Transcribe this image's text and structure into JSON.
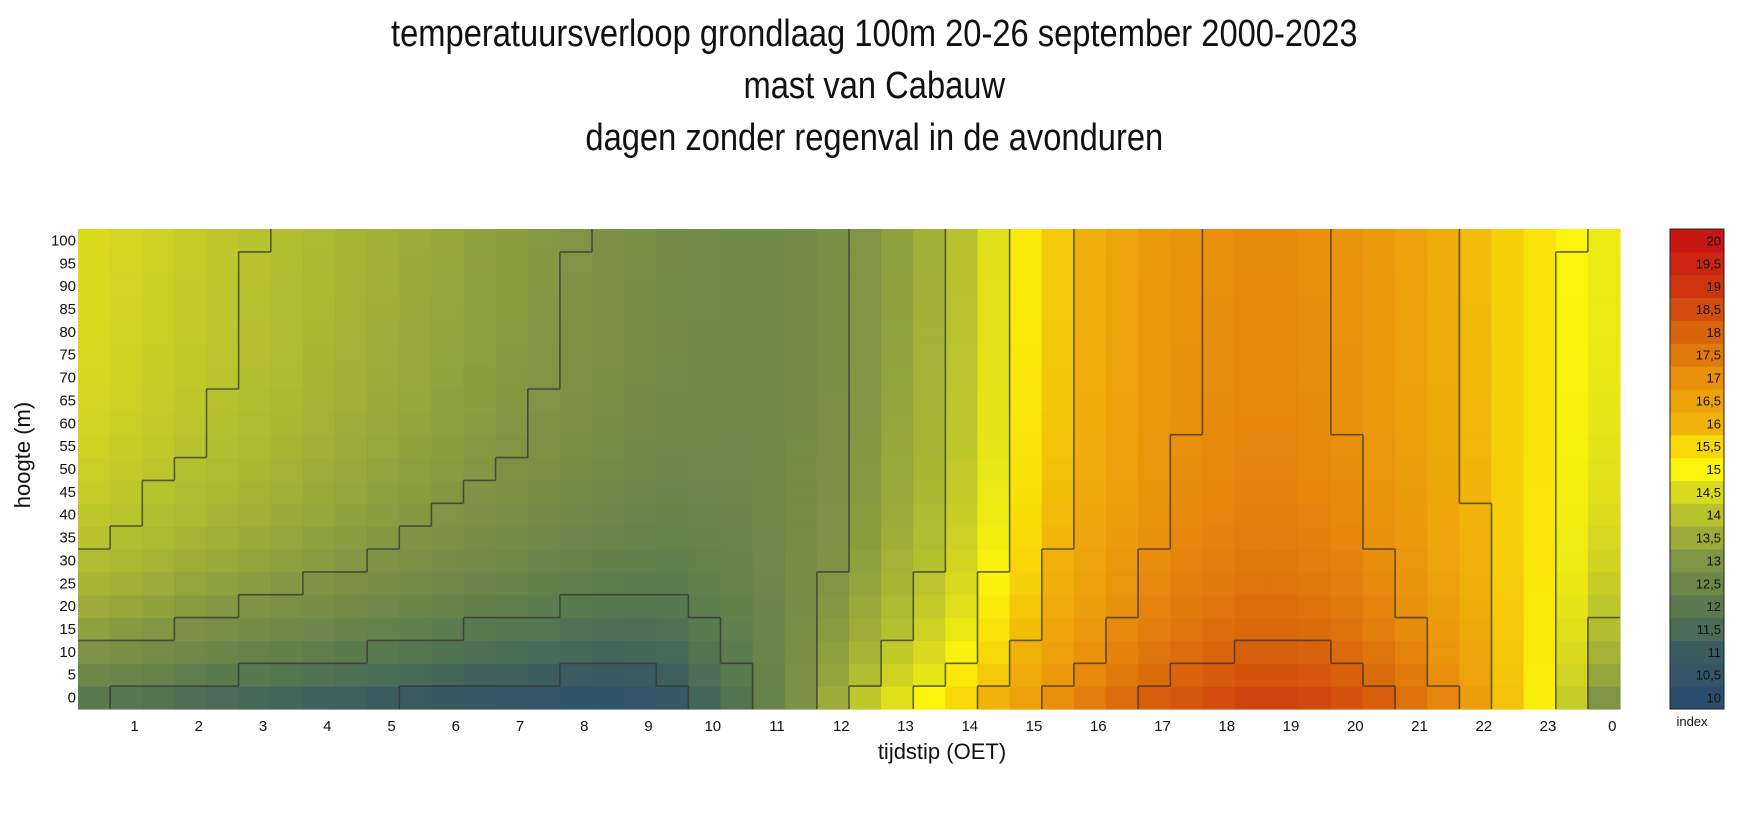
{
  "titles": [
    "temperatuursverloop grondlaag 100m 20-26 september 2000-2023",
    "mast van Cabauw",
    "dagen zonder regenval in de avonduren"
  ],
  "chart_data": {
    "type": "heatmap",
    "xlabel": "tijdstip (OET)",
    "ylabel": "hoogte (m)",
    "x_tick_labels": [
      "1",
      "2",
      "3",
      "4",
      "5",
      "6",
      "7",
      "8",
      "9",
      "10",
      "11",
      "12",
      "13",
      "14",
      "15",
      "16",
      "17",
      "18",
      "19",
      "20",
      "21",
      "22",
      "23",
      "0"
    ],
    "y_tick_labels": [
      "0",
      "5",
      "10",
      "15",
      "20",
      "25",
      "30",
      "35",
      "40",
      "45",
      "50",
      "55",
      "60",
      "65",
      "70",
      "75",
      "80",
      "85",
      "90",
      "95",
      "100"
    ],
    "heights_m": [
      0,
      5,
      10,
      15,
      20,
      25,
      30,
      35,
      40,
      45,
      50,
      55,
      60,
      65,
      70,
      75,
      80,
      85,
      90,
      95,
      100
    ],
    "hours": [
      0.5,
      1,
      1.5,
      2,
      2.5,
      3,
      3.5,
      4,
      4.5,
      5,
      5.5,
      6,
      6.5,
      7,
      7.5,
      8,
      8.5,
      9,
      9.5,
      10,
      10.5,
      11,
      11.5,
      12,
      12.5,
      13,
      13.5,
      14,
      14.5,
      15,
      15.5,
      16,
      16.5,
      17,
      17.5,
      18,
      18.5,
      19,
      19.5,
      20,
      20.5,
      21,
      21.5,
      22,
      22.5,
      23,
      23.5,
      24
    ],
    "surface_temp": [
      12.0,
      11.9,
      11.8,
      11.6,
      11.5,
      11.4,
      11.3,
      11.2,
      11.1,
      11.0,
      10.9,
      10.8,
      10.7,
      10.6,
      10.5,
      10.4,
      10.4,
      10.5,
      10.7,
      11.3,
      11.8,
      12.3,
      12.9,
      13.5,
      14.1,
      14.6,
      15.0,
      15.5,
      16.0,
      16.5,
      17.0,
      17.4,
      17.8,
      18.1,
      18.3,
      18.5,
      18.7,
      18.7,
      18.6,
      18.4,
      18.1,
      17.7,
      17.2,
      16.6,
      15.8,
      15.1,
      14.2,
      13.0
    ],
    "t100": [
      14.5,
      14.4,
      14.3,
      14.2,
      14.1,
      14.0,
      13.9,
      13.8,
      13.7,
      13.6,
      13.5,
      13.4,
      13.3,
      13.2,
      13.1,
      13.0,
      12.9,
      12.8,
      12.7,
      12.65,
      12.6,
      12.6,
      12.7,
      12.8,
      13.0,
      13.3,
      13.6,
      14.0,
      14.6,
      15.2,
      15.7,
      16.1,
      16.4,
      16.7,
      16.9,
      17.0,
      17.1,
      17.1,
      17.0,
      16.9,
      16.7,
      16.5,
      16.2,
      15.9,
      15.6,
      15.3,
      15.0,
      14.8
    ],
    "colorbar_title": "index",
    "colorbar_min": 10,
    "colorbar_max": 20,
    "colorbar_labels": [
      "10",
      "10,5",
      "11",
      "11,5",
      "12",
      "12,5",
      "13",
      "13,5",
      "14",
      "14,5",
      "15",
      "15,5",
      "16",
      "16,5",
      "17",
      "17,5",
      "18",
      "18,5",
      "19",
      "19,5",
      "20"
    ],
    "colorbar_stops": [
      {
        "t": 10,
        "color": "#2a4d6e"
      },
      {
        "t": 11,
        "color": "#3b5c5f"
      },
      {
        "t": 12,
        "color": "#5a7a4e"
      },
      {
        "t": 13,
        "color": "#7f9444"
      },
      {
        "t": 14,
        "color": "#b8c22e"
      },
      {
        "t": 15,
        "color": "#fbf40c"
      },
      {
        "t": 15.5,
        "color": "#f8d808"
      },
      {
        "t": 16,
        "color": "#f0b30a"
      },
      {
        "t": 17,
        "color": "#e98f0c"
      },
      {
        "t": 18,
        "color": "#d8640c"
      },
      {
        "t": 19,
        "color": "#cf3610"
      },
      {
        "t": 20,
        "color": "#c81614"
      }
    ],
    "contour_color": "#333333"
  }
}
